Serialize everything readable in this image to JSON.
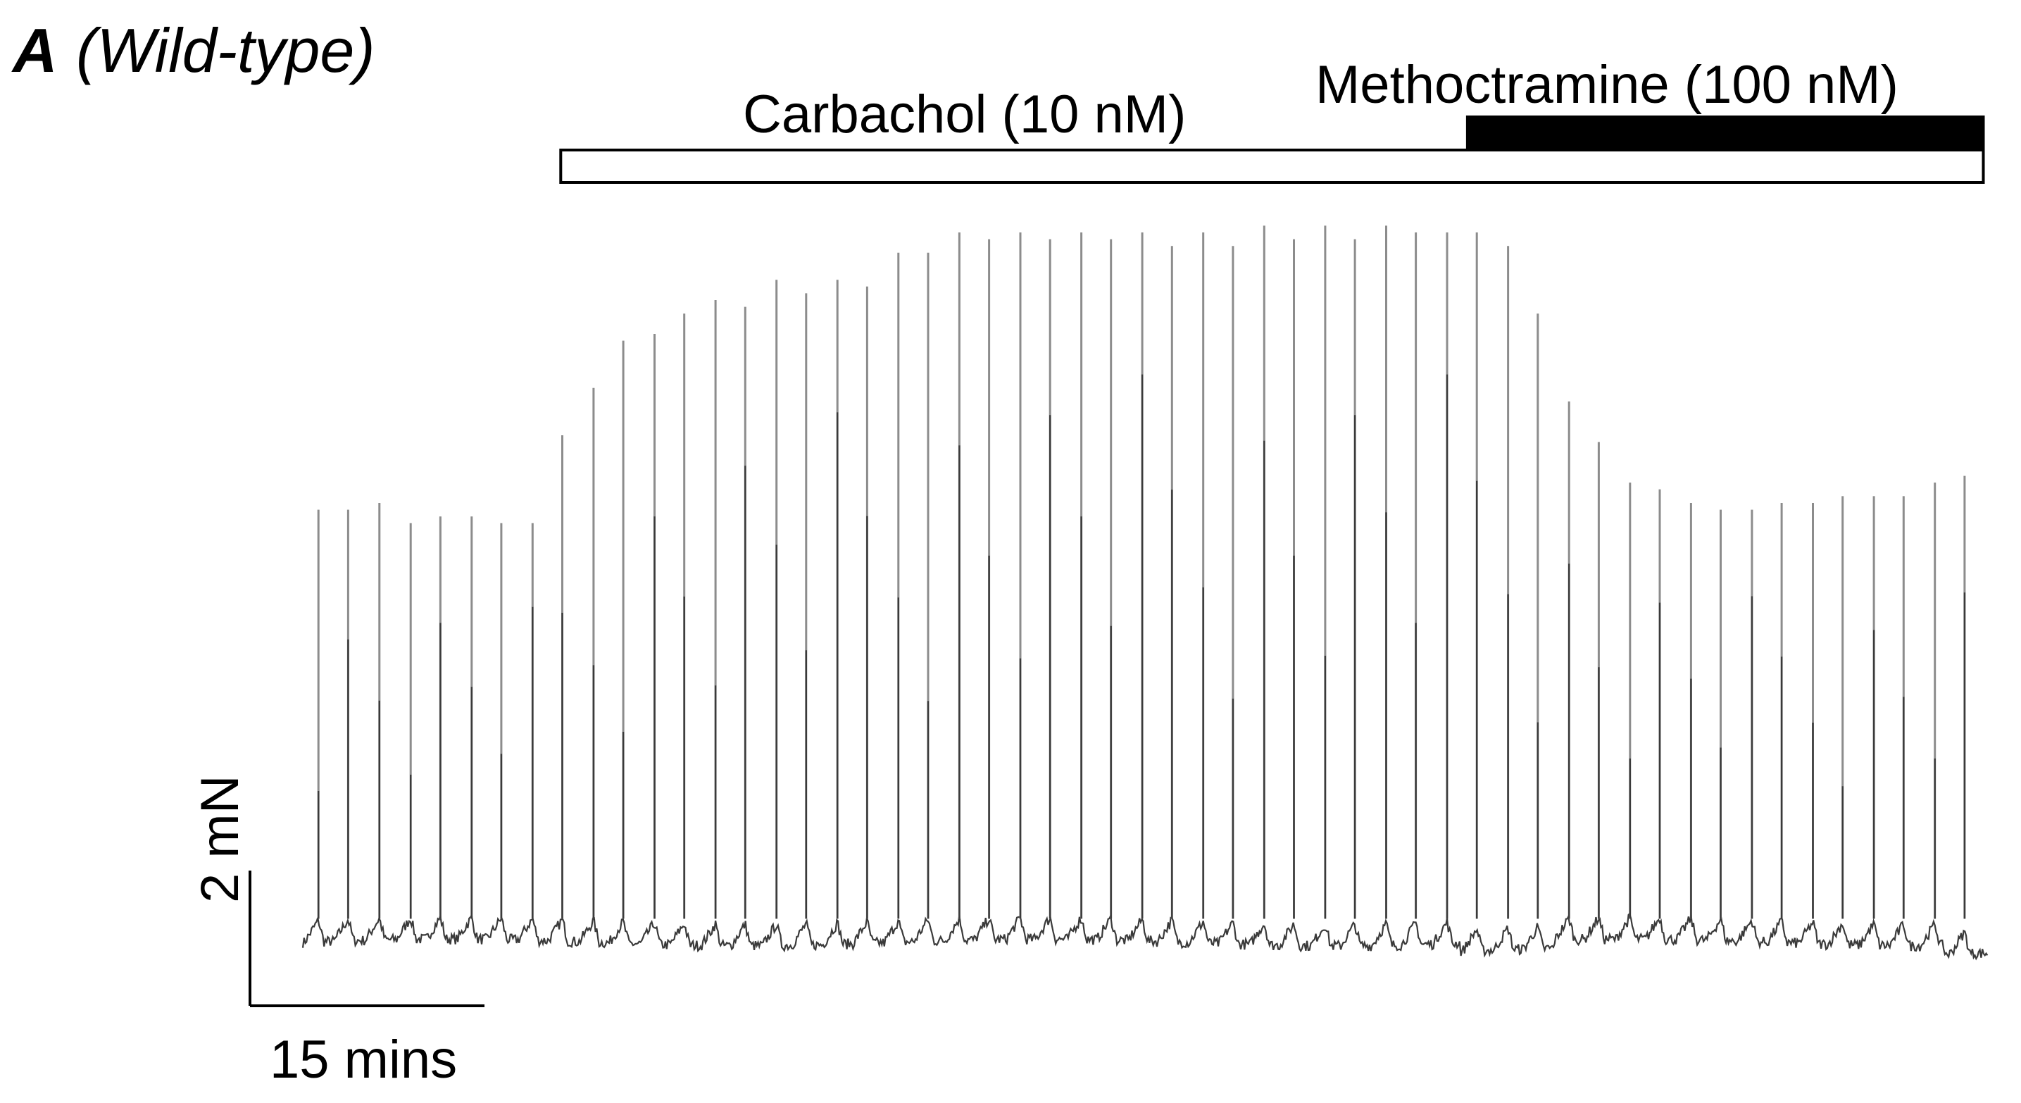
{
  "panel": {
    "letter": "A",
    "genotype": "(Wild-type)"
  },
  "treatments": {
    "carbachol_label": "Carbachol (10 nM)",
    "methoctramine_label": "Methoctramine (100 nM)",
    "carbachol_fill": "#ffffff",
    "methoctramine_fill": "#000000"
  },
  "scale_bar": {
    "force_label": "2 mN",
    "time_label": "15 mins"
  },
  "colors": {
    "trace": "#3a3a3a",
    "spike": "#8c8c8c",
    "axis": "#000000"
  },
  "chart_data": {
    "type": "line",
    "title": "",
    "xlabel": "",
    "ylabel": "",
    "x_units": "min",
    "y_units": "mN",
    "grid": false,
    "time_scale_bar_min": 15,
    "force_scale_bar_mN": 2,
    "carbachol_period_min": [
      16.5,
      107.5
    ],
    "methoctramine_period_min": [
      74.5,
      107.5
    ],
    "baseline_mN": 0,
    "contractions": {
      "time_min": [
        1.0,
        2.9,
        4.9,
        6.9,
        8.8,
        10.8,
        12.7,
        14.7,
        16.6,
        18.6,
        20.5,
        22.5,
        24.4,
        26.4,
        28.3,
        30.3,
        32.2,
        34.2,
        36.1,
        38.1,
        40.0,
        42.0,
        43.9,
        45.9,
        47.8,
        49.8,
        51.7,
        53.7,
        55.6,
        57.6,
        59.5,
        61.5,
        63.4,
        65.4,
        67.3,
        69.3,
        71.2,
        73.2,
        75.1,
        77.1,
        79.0,
        81.0,
        82.9,
        84.9,
        86.8,
        88.8,
        90.7,
        92.7,
        94.6,
        96.6,
        98.5,
        100.5,
        102.4,
        104.4,
        106.3
      ],
      "peak_mN": [
        6.4,
        6.4,
        6.5,
        6.2,
        6.3,
        6.3,
        6.2,
        6.2,
        7.5,
        8.2,
        8.9,
        9.0,
        9.3,
        9.5,
        9.4,
        9.8,
        9.6,
        9.8,
        9.7,
        10.2,
        10.2,
        10.5,
        10.4,
        10.5,
        10.4,
        10.5,
        10.4,
        10.5,
        10.3,
        10.5,
        10.3,
        10.6,
        10.4,
        10.6,
        10.4,
        10.6,
        10.5,
        10.5,
        10.5,
        10.3,
        9.3,
        8.0,
        7.4,
        6.8,
        6.7,
        6.5,
        6.4,
        6.4,
        6.5,
        6.5,
        6.6,
        6.6,
        6.6,
        6.8,
        6.9
      ]
    }
  }
}
